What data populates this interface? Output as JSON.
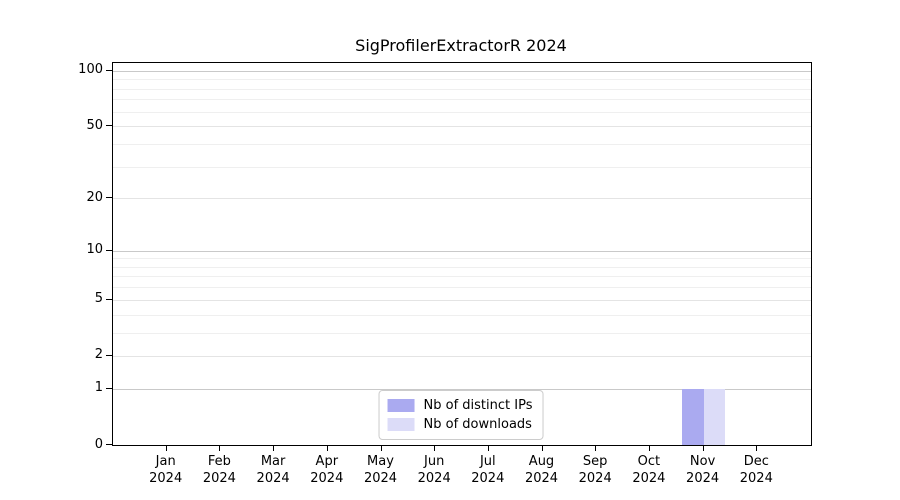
{
  "chart_data": {
    "type": "bar",
    "title": "SigProfilerExtractorR 2024",
    "categories": [
      "Jan 2024",
      "Feb 2024",
      "Mar 2024",
      "Apr 2024",
      "May 2024",
      "Jun 2024",
      "Jul 2024",
      "Aug 2024",
      "Sep 2024",
      "Oct 2024",
      "Nov 2024",
      "Dec 2024"
    ],
    "series": [
      {
        "name": "Nb of distinct IPs",
        "color": "#aaaaf0",
        "values": [
          0,
          0,
          0,
          0,
          0,
          0,
          0,
          0,
          0,
          0,
          1,
          0
        ]
      },
      {
        "name": "Nb of downloads",
        "color": "#dcdcf8",
        "values": [
          0,
          0,
          0,
          0,
          0,
          0,
          0,
          0,
          0,
          0,
          1,
          0
        ]
      }
    ],
    "xlabel": "",
    "ylabel": "",
    "yscale": "log1p",
    "yticks": [
      0,
      1,
      2,
      5,
      10,
      20,
      50,
      100
    ],
    "ylim": [
      0,
      110
    ],
    "grid": "both",
    "legend_position": "lower center",
    "colors": {
      "major_gridline": "#c9c9c9",
      "labeled_gridline": "#e4e4e4",
      "minor_gridline": "#efefef",
      "spine": "#000000",
      "legend_border": "#cccccc"
    }
  }
}
